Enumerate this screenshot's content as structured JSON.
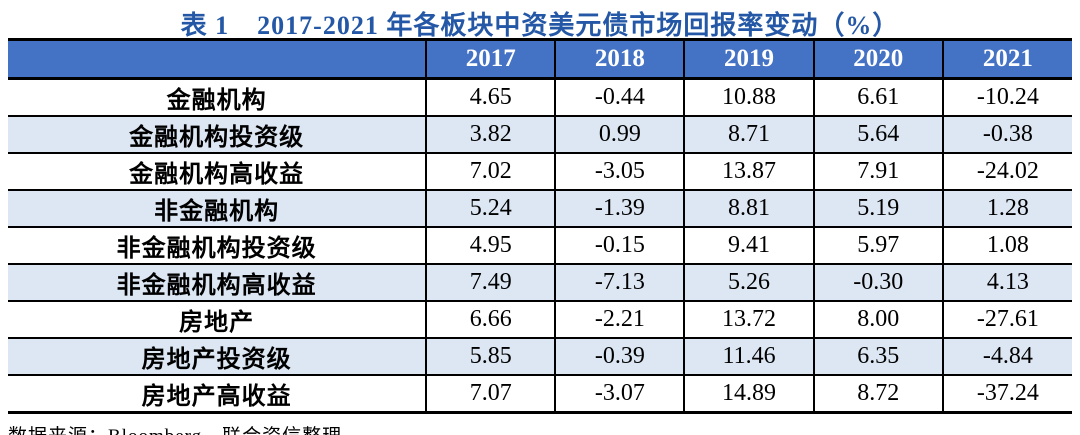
{
  "title": {
    "label": "表 1",
    "text": "2017-2021 年各板块中资美元债市场回报率变动（%）"
  },
  "source_note": "数据来源：Bloomberg，联合资信整理",
  "colors": {
    "header_bg": "#4472C4",
    "header_text": "#FFFFFF",
    "band_bg": "#DCE7F3",
    "title_text": "#2458A6",
    "border": "#000000"
  },
  "chart_data": {
    "type": "table",
    "title": "2017-2021 年各板块中资美元债市场回报率变动（%）",
    "columns": [
      "",
      "2017",
      "2018",
      "2019",
      "2020",
      "2021"
    ],
    "rows": [
      {
        "label": "金融机构",
        "values": [
          "4.65",
          "-0.44",
          "10.88",
          "6.61",
          "-10.24"
        ]
      },
      {
        "label": "金融机构投资级",
        "values": [
          "3.82",
          "0.99",
          "8.71",
          "5.64",
          "-0.38"
        ]
      },
      {
        "label": "金融机构高收益",
        "values": [
          "7.02",
          "-3.05",
          "13.87",
          "7.91",
          "-24.02"
        ]
      },
      {
        "label": "非金融机构",
        "values": [
          "5.24",
          "-1.39",
          "8.81",
          "5.19",
          "1.28"
        ]
      },
      {
        "label": "非金融机构投资级",
        "values": [
          "4.95",
          "-0.15",
          "9.41",
          "5.97",
          "1.08"
        ]
      },
      {
        "label": "非金融机构高收益",
        "values": [
          "7.49",
          "-7.13",
          "5.26",
          "-0.30",
          "4.13"
        ]
      },
      {
        "label": "房地产",
        "values": [
          "6.66",
          "-2.21",
          "13.72",
          "8.00",
          "-27.61"
        ]
      },
      {
        "label": "房地产投资级",
        "values": [
          "5.85",
          "-0.39",
          "11.46",
          "6.35",
          "-4.84"
        ]
      },
      {
        "label": "房地产高收益",
        "values": [
          "7.07",
          "-3.07",
          "14.89",
          "8.72",
          "-37.24"
        ]
      }
    ]
  }
}
